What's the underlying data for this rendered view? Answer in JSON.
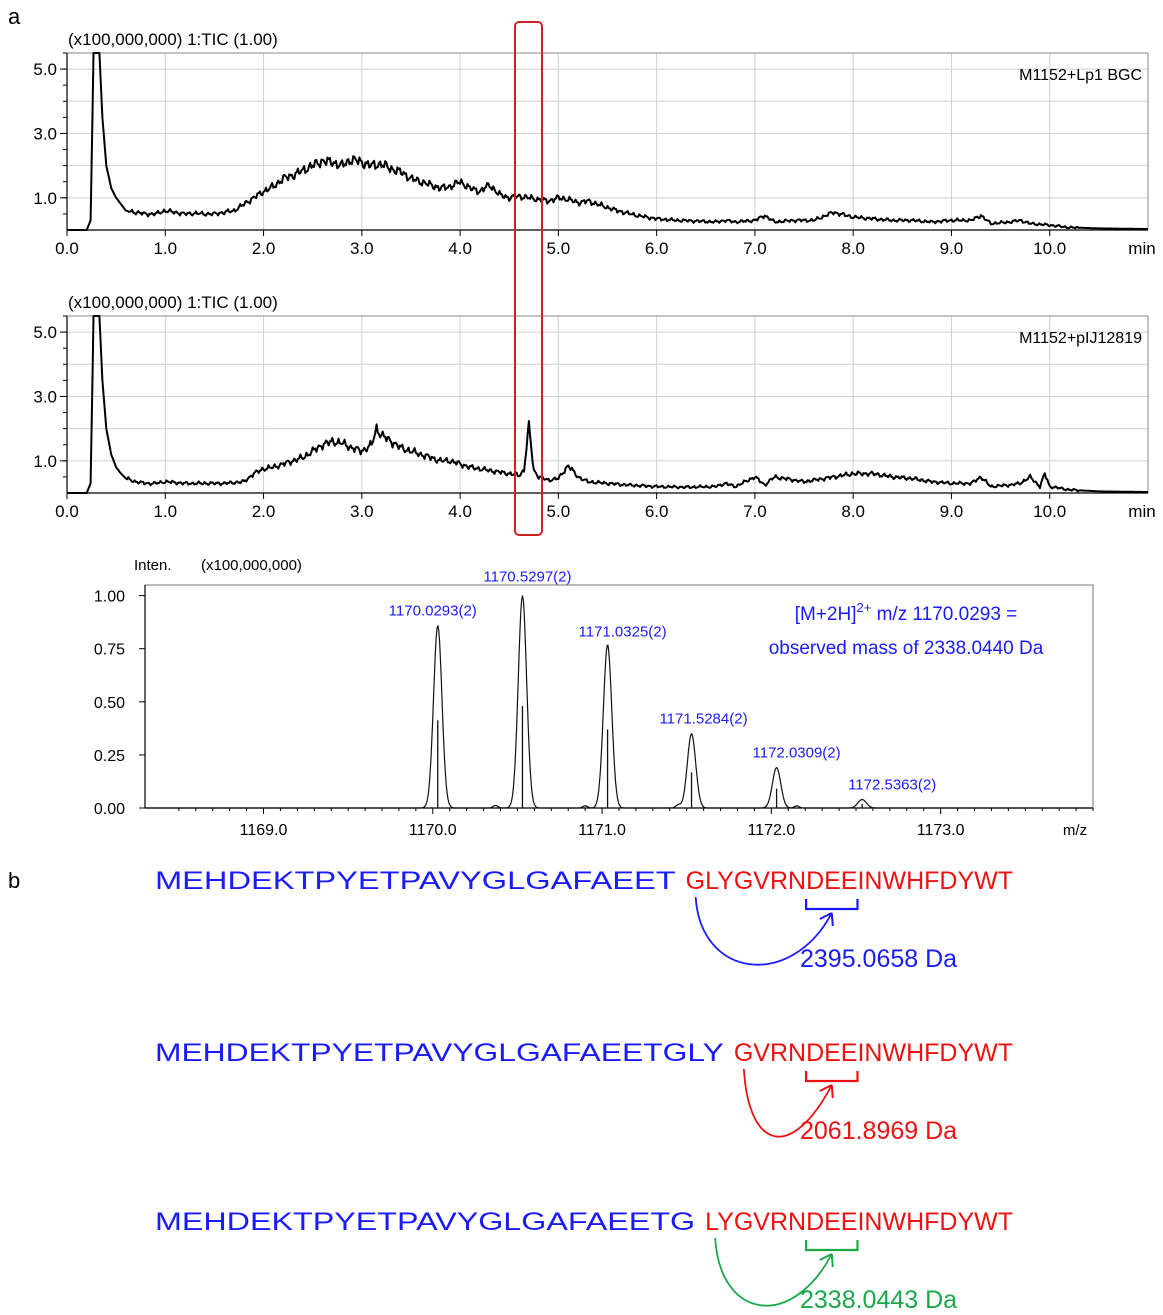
{
  "panel_labels": {
    "a": "a",
    "b": "b"
  },
  "colors": {
    "trace": "#000000",
    "highlight_box": "#cc2222",
    "blue": "#1a1aff",
    "red": "#ee1111",
    "green": "#1aa84a",
    "grid": "#d0d0d0"
  },
  "chart_data": [
    {
      "type": "line",
      "scale_label": "(x100,000,000) 1:TIC (1.00)",
      "sample_label": "M1152+Lp1 BGC",
      "x_unit": "min",
      "xlim": [
        0.0,
        11.0
      ],
      "ylim": [
        0.0,
        5.5
      ],
      "x_ticks": [
        "0.0",
        "1.0",
        "2.0",
        "3.0",
        "4.0",
        "5.0",
        "6.0",
        "7.0",
        "8.0",
        "9.0",
        "10.0"
      ],
      "y_ticks": [
        "1.0",
        "3.0",
        "5.0"
      ],
      "series": [
        {
          "x": [
            0.0,
            0.2,
            0.24,
            0.27,
            0.33,
            0.36,
            0.4,
            0.45,
            0.5,
            0.55,
            0.6,
            0.7,
            0.8,
            0.9,
            1.0,
            1.1,
            1.2,
            1.3,
            1.4,
            1.5,
            1.6,
            1.7,
            1.8,
            1.9,
            2.0,
            2.1,
            2.2,
            2.3,
            2.4,
            2.5,
            2.6,
            2.7,
            2.8,
            2.9,
            3.0,
            3.1,
            3.2,
            3.3,
            3.4,
            3.5,
            3.6,
            3.7,
            3.8,
            3.9,
            4.0,
            4.1,
            4.2,
            4.3,
            4.4,
            4.5,
            4.6,
            4.7,
            4.8,
            4.9,
            5.0,
            5.1,
            5.2,
            5.3,
            5.4,
            5.5,
            5.6,
            5.8,
            6.0,
            6.2,
            6.4,
            6.6,
            6.7,
            6.8,
            7.0,
            7.1,
            7.2,
            7.4,
            7.6,
            7.8,
            8.0,
            8.2,
            8.4,
            8.6,
            8.8,
            9.0,
            9.2,
            9.3,
            9.4,
            9.6,
            9.7,
            9.8,
            10.0,
            10.2,
            10.5,
            11.0
          ],
          "y": [
            0.0,
            0.0,
            0.3,
            5.5,
            5.5,
            3.5,
            2.0,
            1.3,
            1.0,
            0.8,
            0.6,
            0.55,
            0.5,
            0.5,
            0.6,
            0.55,
            0.5,
            0.52,
            0.5,
            0.5,
            0.55,
            0.6,
            0.8,
            1.0,
            1.2,
            1.35,
            1.6,
            1.7,
            1.85,
            2.0,
            2.15,
            2.1,
            2.0,
            2.2,
            2.1,
            2.0,
            2.05,
            1.9,
            1.8,
            1.6,
            1.5,
            1.4,
            1.3,
            1.35,
            1.5,
            1.3,
            1.2,
            1.4,
            1.1,
            1.0,
            1.05,
            1.0,
            0.95,
            0.9,
            1.0,
            0.95,
            0.85,
            0.9,
            0.8,
            0.7,
            0.6,
            0.45,
            0.35,
            0.3,
            0.28,
            0.25,
            0.3,
            0.25,
            0.3,
            0.45,
            0.25,
            0.3,
            0.3,
            0.55,
            0.4,
            0.35,
            0.3,
            0.3,
            0.25,
            0.3,
            0.3,
            0.45,
            0.2,
            0.25,
            0.3,
            0.2,
            0.15,
            0.08,
            0.05,
            0.03
          ]
        }
      ]
    },
    {
      "type": "line",
      "scale_label": "(x100,000,000) 1:TIC (1.00)",
      "sample_label": "M1152+pIJ12819",
      "x_unit": "min",
      "xlim": [
        0.0,
        11.0
      ],
      "ylim": [
        0.0,
        5.5
      ],
      "x_ticks": [
        "0.0",
        "1.0",
        "2.0",
        "3.0",
        "4.0",
        "5.0",
        "6.0",
        "7.0",
        "8.0",
        "9.0",
        "10.0"
      ],
      "y_ticks": [
        "1.0",
        "3.0",
        "5.0"
      ],
      "series": [
        {
          "x": [
            0.0,
            0.2,
            0.24,
            0.27,
            0.33,
            0.36,
            0.4,
            0.45,
            0.5,
            0.55,
            0.6,
            0.7,
            0.8,
            0.9,
            1.0,
            1.2,
            1.4,
            1.6,
            1.8,
            1.9,
            2.0,
            2.1,
            2.2,
            2.3,
            2.4,
            2.5,
            2.6,
            2.7,
            2.8,
            2.9,
            3.0,
            3.1,
            3.15,
            3.2,
            3.3,
            3.4,
            3.5,
            3.6,
            3.7,
            3.8,
            3.9,
            4.0,
            4.1,
            4.2,
            4.3,
            4.4,
            4.5,
            4.6,
            4.65,
            4.7,
            4.75,
            4.8,
            4.9,
            5.0,
            5.1,
            5.2,
            5.3,
            5.5,
            5.7,
            6.0,
            6.3,
            6.6,
            6.7,
            6.8,
            6.9,
            7.0,
            7.1,
            7.2,
            7.5,
            7.8,
            8.0,
            8.2,
            8.4,
            8.6,
            8.8,
            9.0,
            9.2,
            9.3,
            9.4,
            9.6,
            9.7,
            9.8,
            9.9,
            9.95,
            10.0,
            10.2,
            10.5,
            11.0
          ],
          "y": [
            0.0,
            0.0,
            0.3,
            5.5,
            5.5,
            3.5,
            2.0,
            1.2,
            0.8,
            0.6,
            0.45,
            0.35,
            0.3,
            0.3,
            0.35,
            0.3,
            0.3,
            0.3,
            0.35,
            0.6,
            0.75,
            0.8,
            0.9,
            1.0,
            1.1,
            1.3,
            1.5,
            1.6,
            1.55,
            1.4,
            1.3,
            1.5,
            2.0,
            1.8,
            1.6,
            1.4,
            1.3,
            1.2,
            1.1,
            1.0,
            1.0,
            0.9,
            0.8,
            0.75,
            0.7,
            0.65,
            0.6,
            0.55,
            0.7,
            2.1,
            0.7,
            0.5,
            0.4,
            0.45,
            0.85,
            0.5,
            0.35,
            0.3,
            0.25,
            0.2,
            0.18,
            0.2,
            0.3,
            0.2,
            0.35,
            0.5,
            0.25,
            0.5,
            0.35,
            0.5,
            0.6,
            0.6,
            0.5,
            0.45,
            0.35,
            0.3,
            0.3,
            0.5,
            0.2,
            0.25,
            0.3,
            0.5,
            0.2,
            0.6,
            0.2,
            0.1,
            0.05,
            0.03
          ]
        }
      ]
    },
    {
      "type": "line",
      "intensity_label": "Inten.",
      "scale_label": "(x100,000,000)",
      "x_unit": "m/z",
      "xlim": [
        1168.3,
        1173.9
      ],
      "ylim": [
        0.0,
        1.05
      ],
      "x_ticks": [
        "1169.0",
        "1170.0",
        "1171.0",
        "1172.0",
        "1173.0"
      ],
      "y_ticks": [
        "0.00",
        "0.25",
        "0.50",
        "0.75",
        "1.00"
      ],
      "annotation": {
        "line1_prefix": "[M+2H]",
        "line1_sup": "2+",
        "line1_suffix": " m/z 1170.0293 =",
        "line2": "observed mass of 2338.0440 Da"
      },
      "peaks": [
        {
          "mz": 1170.0293,
          "intensity": 0.86,
          "label": "1170.0293(2)"
        },
        {
          "mz": 1170.5297,
          "intensity": 1.0,
          "label": "1170.5297(2)"
        },
        {
          "mz": 1171.0325,
          "intensity": 0.77,
          "label": "1171.0325(2)"
        },
        {
          "mz": 1171.5284,
          "intensity": 0.35,
          "label": "1171.5284(2)"
        },
        {
          "mz": 1172.0309,
          "intensity": 0.19,
          "label": "1172.0309(2)"
        },
        {
          "mz": 1172.5363,
          "intensity": 0.04,
          "label": "1172.5363(2)"
        }
      ]
    }
  ],
  "sequences": [
    {
      "blue": "MEHDEKTPYETPAVYGLGAFAEET",
      "red_pre": "GLYGVRN",
      "red_bracket": "DEE",
      "red_post": "INWHFDYWT",
      "mass": "2395.0658",
      "unit": "Da",
      "color": "blue"
    },
    {
      "blue": "MEHDEKTPYETPAVYGLGAFAEETGLY",
      "red_pre": "GVRN",
      "red_bracket": "DEE",
      "red_post": "INWHFDYWT",
      "mass": "2061.8969",
      "unit": "Da",
      "color": "red"
    },
    {
      "blue": "MEHDEKTPYETPAVYGLGAFAEETG",
      "red_pre": "LYGVRN",
      "red_bracket": "DEE",
      "red_post": "INWHFDYWT",
      "mass": "2338.0443",
      "unit": "Da",
      "color": "green"
    }
  ]
}
